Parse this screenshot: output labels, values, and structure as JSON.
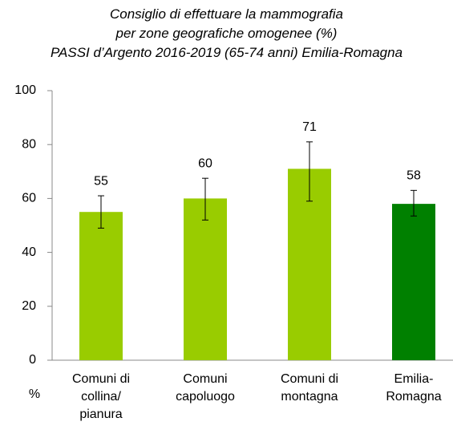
{
  "chart_data": {
    "type": "bar",
    "title": "Consiglio di effettuare la mammografia\nper zone geografiche omogenee (%)\nPASSI d’Argento 2016-2019 (65-74 anni)  Emilia-Romagna",
    "y_label": "%",
    "categories": [
      "Comuni di\ncollina/\npianura",
      "Comuni\ncapoluogo",
      "Comuni di\nmontagna",
      "Emilia-\nRomagna"
    ],
    "values": [
      55,
      60,
      71,
      58
    ],
    "ci_low": [
      49,
      52,
      59,
      53.5
    ],
    "ci_high": [
      61,
      67.5,
      81,
      63
    ],
    "colors": [
      "#99cc00",
      "#99cc00",
      "#99cc00",
      "#008000"
    ],
    "ylim": [
      0,
      100
    ],
    "yticks": [
      0,
      20,
      40,
      60,
      80,
      100
    ],
    "grid": false
  }
}
